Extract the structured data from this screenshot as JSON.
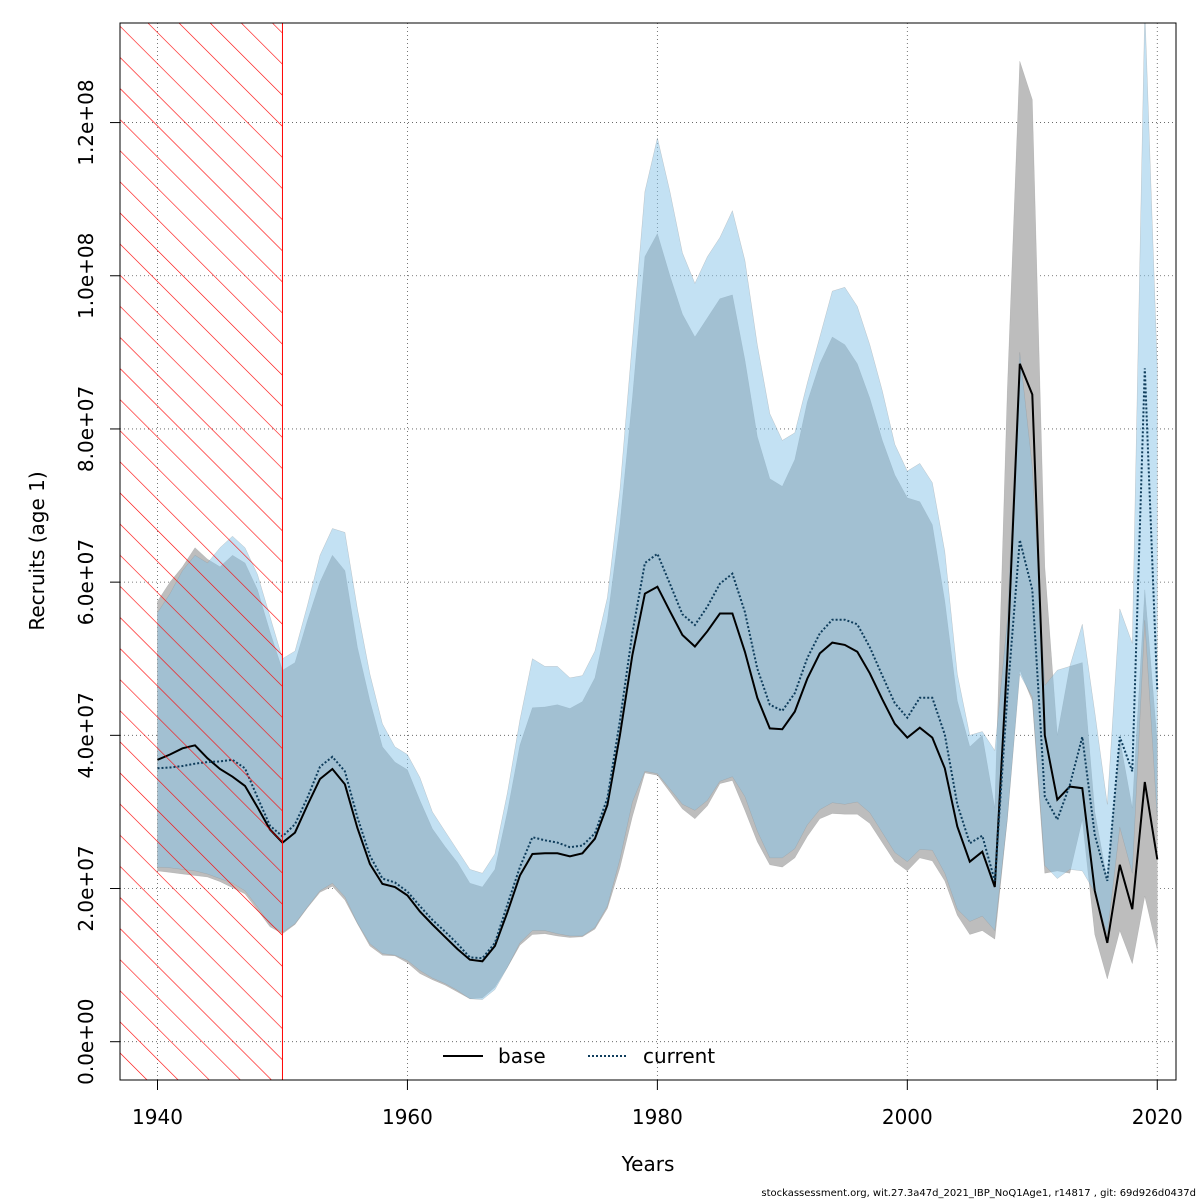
{
  "chart_data": {
    "type": "area",
    "title": "",
    "xlabel": "Years",
    "ylabel": "Recruits (age 1)",
    "xlim": [
      1937,
      2021.5
    ],
    "ylim": [
      -5000000,
      133000000
    ],
    "xticks": [
      1940,
      1960,
      1980,
      2000,
      2020
    ],
    "xtick_labels": [
      "1940",
      "1960",
      "1980",
      "2000",
      "2020"
    ],
    "yticks": [
      0,
      20000000,
      40000000,
      60000000,
      80000000,
      100000000,
      120000000
    ],
    "ytick_labels": [
      "0.0e+00",
      "2.0e+07",
      "4.0e+07",
      "6.0e+07",
      "8.0e+07",
      "1.0e+08",
      "1.2e+08"
    ],
    "grid": true,
    "shaded_period": [
      1937,
      1950
    ],
    "legend": {
      "placement": "bottom-center"
    },
    "colors": {
      "base_line": "#000000",
      "base_band": "#bdbdbd",
      "current_line": "#0f3d5c",
      "current_band": "#87c3e8",
      "shade_hatch": "#ff0000"
    },
    "series": [
      {
        "name": "base",
        "line": "solid",
        "x": [
          1940,
          1941,
          1942,
          1943,
          1944,
          1945,
          1946,
          1947,
          1948,
          1949,
          1950,
          1951,
          1952,
          1953,
          1954,
          1955,
          1956,
          1957,
          1958,
          1959,
          1960,
          1961,
          1962,
          1963,
          1964,
          1965,
          1966,
          1967,
          1968,
          1969,
          1970,
          1971,
          1972,
          1973,
          1974,
          1975,
          1976,
          1977,
          1978,
          1979,
          1980,
          1981,
          1982,
          1983,
          1984,
          1985,
          1986,
          1987,
          1988,
          1989,
          1990,
          1991,
          1992,
          1993,
          1994,
          1995,
          1996,
          1997,
          1998,
          1999,
          2000,
          2001,
          2002,
          2003,
          2004,
          2005,
          2006,
          2007,
          2008,
          2009,
          2010,
          2011,
          2012,
          2013,
          2014,
          2015,
          2016,
          2017,
          2018,
          2019,
          2020
        ],
        "values": [
          36800000,
          37500000,
          38300000,
          38700000,
          37000000,
          35600000,
          34600000,
          33400000,
          30600000,
          27700000,
          26000000,
          27300000,
          30900000,
          34300000,
          35600000,
          33600000,
          27900000,
          23200000,
          20600000,
          20200000,
          19100000,
          17000000,
          15300000,
          13700000,
          12100000,
          10700000,
          10500000,
          12500000,
          16900000,
          21700000,
          24500000,
          24600000,
          24600000,
          24200000,
          24600000,
          26500000,
          30900000,
          40000000,
          50500000,
          58500000,
          59400000,
          56200000,
          53100000,
          51600000,
          53600000,
          55900000,
          55900000,
          50900000,
          44900000,
          40900000,
          40800000,
          43100000,
          47400000,
          50700000,
          52100000,
          51800000,
          50900000,
          48100000,
          44700000,
          41500000,
          39700000,
          41000000,
          39700000,
          35700000,
          28100000,
          23500000,
          24800000,
          20200000,
          50000000,
          88500000,
          84500000,
          40000000,
          31600000,
          33300000,
          33100000,
          19700000,
          12900000,
          23100000,
          17300000,
          33900000,
          23800000
        ],
        "lower": [
          22300000,
          22100000,
          21900000,
          21700000,
          21500000,
          20900000,
          20100000,
          19300000,
          17200000,
          15000000,
          14100000,
          15300000,
          17500000,
          19500000,
          20300000,
          18500000,
          15400000,
          12500000,
          11300000,
          11200000,
          10300000,
          8900000,
          8100000,
          7400000,
          6500000,
          5600000,
          5700000,
          7100000,
          9700000,
          12600000,
          14000000,
          14100000,
          13800000,
          13600000,
          13700000,
          14700000,
          17400000,
          22700000,
          29400000,
          35100000,
          34800000,
          32600000,
          30400000,
          29100000,
          30800000,
          33700000,
          34100000,
          30200000,
          26100000,
          23100000,
          22800000,
          24000000,
          26800000,
          29100000,
          29800000,
          29700000,
          29700000,
          28500000,
          26000000,
          23500000,
          22300000,
          24000000,
          23600000,
          21000000,
          16500000,
          14000000,
          14500000,
          13400000,
          29000000,
          48500000,
          44500000,
          22000000,
          22300000,
          22000000,
          29000000,
          14000000,
          8200000,
          14500000,
          10200000,
          19000000,
          12000000
        ],
        "upper": [
          57500000,
          60000000,
          62000000,
          64500000,
          63000000,
          62000000,
          63500000,
          62500000,
          59000000,
          53500000,
          48500000,
          49500000,
          55000000,
          60000000,
          63500000,
          61500000,
          51500000,
          44500000,
          38500000,
          36500000,
          35500000,
          31500000,
          27800000,
          25500000,
          23400000,
          20700000,
          20200000,
          22500000,
          30000000,
          38700000,
          43600000,
          43700000,
          44000000,
          43500000,
          44400000,
          47500000,
          55000000,
          67500000,
          84000000,
          102500000,
          105500000,
          100000000,
          95000000,
          92000000,
          94500000,
          97000000,
          97500000,
          89000000,
          79000000,
          73500000,
          72500000,
          76000000,
          83500000,
          88500000,
          92000000,
          91000000,
          88500000,
          84000000,
          78500000,
          74000000,
          71000000,
          70500000,
          67500000,
          57500000,
          44500000,
          38500000,
          40000000,
          30500000,
          85000000,
          128000000,
          123000000,
          62000000,
          40000000,
          49000000,
          49500000,
          30000000,
          21000000,
          39500000,
          30500000,
          59000000,
          39000000
        ]
      },
      {
        "name": "current",
        "line": "dotted",
        "x": [
          1940,
          1941,
          1942,
          1943,
          1944,
          1945,
          1946,
          1947,
          1948,
          1949,
          1950,
          1951,
          1952,
          1953,
          1954,
          1955,
          1956,
          1957,
          1958,
          1959,
          1960,
          1961,
          1962,
          1963,
          1964,
          1965,
          1966,
          1967,
          1968,
          1969,
          1970,
          1971,
          1972,
          1973,
          1974,
          1975,
          1976,
          1977,
          1978,
          1979,
          1980,
          1981,
          1982,
          1983,
          1984,
          1985,
          1986,
          1987,
          1988,
          1989,
          1990,
          1991,
          1992,
          1993,
          1994,
          1995,
          1996,
          1997,
          1998,
          1999,
          2000,
          2001,
          2002,
          2003,
          2004,
          2005,
          2006,
          2007,
          2008,
          2009,
          2010,
          2011,
          2012,
          2013,
          2014,
          2015,
          2016,
          2017,
          2018,
          2019,
          2020
        ],
        "values": [
          35700000,
          35800000,
          36000000,
          36300000,
          36500000,
          36600000,
          36800000,
          35700000,
          31900000,
          28200000,
          26800000,
          28400000,
          31900000,
          35900000,
          37200000,
          35300000,
          29300000,
          24300000,
          21300000,
          20800000,
          19600000,
          17700000,
          15900000,
          14400000,
          12800000,
          11000000,
          10900000,
          12900000,
          17900000,
          22800000,
          26700000,
          26300000,
          26000000,
          25400000,
          25600000,
          27200000,
          31800000,
          41900000,
          53400000,
          62500000,
          63700000,
          59800000,
          55800000,
          54400000,
          56800000,
          59800000,
          61100000,
          56100000,
          48700000,
          44000000,
          43200000,
          45500000,
          50100000,
          53300000,
          55100000,
          55100000,
          54500000,
          51500000,
          47800000,
          44200000,
          42300000,
          44900000,
          44900000,
          40100000,
          31000000,
          25900000,
          26900000,
          21000000,
          45000000,
          65500000,
          59000000,
          32000000,
          29000000,
          33500000,
          39800000,
          27000000,
          21000000,
          39800000,
          35300000,
          87900000,
          45800000
        ],
        "lower": [
          22800000,
          22700000,
          22500000,
          22300000,
          21900000,
          21300000,
          20700000,
          19700000,
          17600000,
          15300000,
          14300000,
          15400000,
          17600000,
          19700000,
          20700000,
          18900000,
          15500000,
          12800000,
          11500000,
          11300000,
          10600000,
          9300000,
          8300000,
          7600000,
          6700000,
          5600000,
          5500000,
          6800000,
          9700000,
          12900000,
          14500000,
          14500000,
          14100000,
          13800000,
          13800000,
          14900000,
          17700000,
          23800000,
          31300000,
          35300000,
          35000000,
          33000000,
          31000000,
          30200000,
          31500000,
          34000000,
          34600000,
          32000000,
          27500000,
          24000000,
          24000000,
          25200000,
          28300000,
          30300000,
          31200000,
          31000000,
          31300000,
          29900000,
          27300000,
          24700000,
          23500000,
          25100000,
          25000000,
          22000000,
          17300000,
          15700000,
          16400000,
          14500000,
          29000000,
          48000000,
          45000000,
          23000000,
          21300000,
          22500000,
          22300000,
          19500000,
          14000000,
          28000000,
          22000000,
          55000000,
          29000000
        ],
        "upper": [
          56000000,
          58500000,
          61500000,
          63500000,
          62500000,
          64500000,
          66000000,
          64500000,
          61000000,
          55500000,
          50000000,
          51000000,
          57000000,
          63500000,
          67000000,
          66500000,
          56500000,
          48000000,
          41500000,
          38500000,
          37500000,
          34500000,
          30000000,
          27500000,
          25000000,
          22500000,
          22000000,
          24500000,
          32500000,
          42000000,
          50000000,
          49000000,
          49000000,
          47500000,
          47800000,
          51000000,
          58000000,
          72000000,
          91500000,
          111000000,
          118000000,
          111000000,
          103000000,
          99000000,
          102500000,
          105000000,
          108500000,
          102000000,
          91000000,
          82000000,
          78500000,
          79500000,
          86000000,
          92000000,
          98000000,
          98500000,
          96000000,
          91000000,
          85000000,
          78000000,
          74500000,
          75500000,
          73000000,
          64000000,
          48000000,
          40000000,
          40500000,
          38000000,
          55000000,
          90000000,
          75000000,
          46500000,
          48500000,
          49000000,
          54500000,
          43000000,
          31000000,
          56500000,
          52000000,
          135000000,
          88000000
        ]
      }
    ]
  },
  "footer_note": "stockassessment.org, wit.27.3a47d_2021_IBP_NoQ1Age1, r14817 , git: 69d926d0437d"
}
